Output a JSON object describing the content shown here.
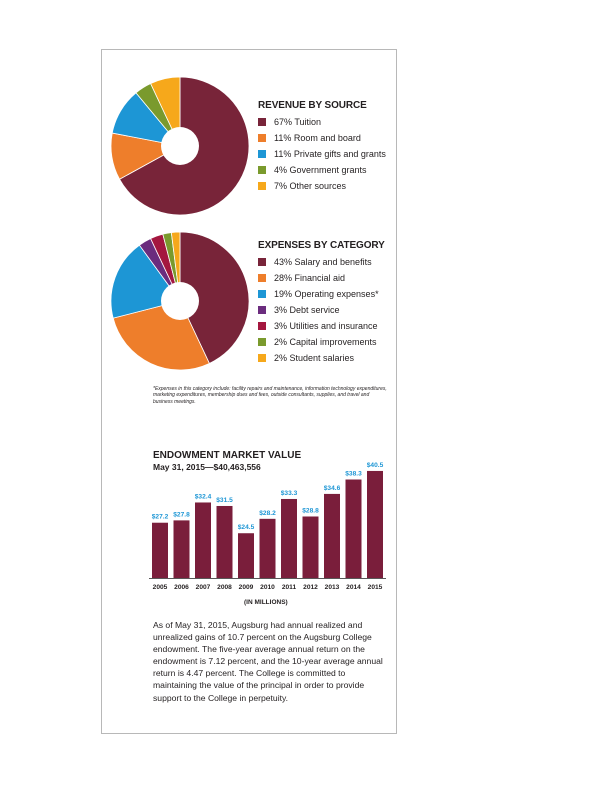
{
  "colors": {
    "maroon": "#782439",
    "orange": "#ee7e2b",
    "blue": "#1d96d5",
    "green": "#7a9a2d",
    "yellow": "#f6a81b",
    "purple": "#6b2c7e",
    "crimson": "#a4173f",
    "bar": "#7a1e3b",
    "bar_label": "#1d96d5"
  },
  "revenue": {
    "title": "REVENUE BY SOURCE",
    "items": [
      {
        "label": "67% Tuition",
        "value": 67,
        "color": "#782439"
      },
      {
        "label": "11% Room and board",
        "value": 11,
        "color": "#ee7e2b"
      },
      {
        "label": "11% Private gifts and grants",
        "value": 11,
        "color": "#1d96d5"
      },
      {
        "label": "4% Government grants",
        "value": 4,
        "color": "#7a9a2d"
      },
      {
        "label": "7% Other sources",
        "value": 7,
        "color": "#f6a81b"
      }
    ]
  },
  "expenses": {
    "title": "EXPENSES BY CATEGORY",
    "items": [
      {
        "label": "43% Salary and benefits",
        "value": 43,
        "color": "#782439"
      },
      {
        "label": "28% Financial aid",
        "value": 28,
        "color": "#ee7e2b"
      },
      {
        "label": "19% Operating expenses*",
        "value": 19,
        "color": "#1d96d5"
      },
      {
        "label": "3% Debt service",
        "value": 3,
        "color": "#6b2c7e"
      },
      {
        "label": "3% Utilities and insurance",
        "value": 3,
        "color": "#a4173f"
      },
      {
        "label": "2% Capital improvements",
        "value": 2,
        "color": "#7a9a2d"
      },
      {
        "label": "2% Student salaries",
        "value": 2,
        "color": "#f6a81b"
      }
    ],
    "footnote": "*Expenses in this category include: facility repairs and maintenance, information technology expenditures, marketing expenditures, membership dues and fees, outside consultants, supplies, and travel and business meetings."
  },
  "endowment": {
    "title": "ENDOWMENT MARKET VALUE",
    "subtitle": "May 31, 2015—$40,463,556",
    "unit_label": "(IN MILLIONS)"
  },
  "paragraph": "As of May 31, 2015, Augsburg had annual realized and unrealized gains of 10.7 percent on the Augsburg College endowment. The five-year average annual return on the endowment is 7.12 percent, and the 10-year average annual return is 4.47 percent. The College is committed to maintaining the value of the principal in order to provide support to the College in perpetuity.",
  "chart_data": [
    {
      "type": "pie",
      "title": "REVENUE BY SOURCE",
      "categories": [
        "Tuition",
        "Room and board",
        "Private gifts and grants",
        "Government grants",
        "Other sources"
      ],
      "values": [
        67,
        11,
        11,
        4,
        7
      ],
      "legend": "right"
    },
    {
      "type": "pie",
      "title": "EXPENSES BY CATEGORY",
      "categories": [
        "Salary and benefits",
        "Financial aid",
        "Operating expenses*",
        "Debt service",
        "Utilities and insurance",
        "Capital improvements",
        "Student salaries"
      ],
      "values": [
        43,
        28,
        19,
        3,
        3,
        2,
        2
      ],
      "legend": "right"
    },
    {
      "type": "bar",
      "title": "ENDOWMENT MARKET VALUE",
      "subtitle": "May 31, 2015—$40,463,556",
      "xlabel": "(IN MILLIONS)",
      "ylabel": "",
      "categories": [
        "2005",
        "2006",
        "2007",
        "2008",
        "2009",
        "2010",
        "2011",
        "2012",
        "2013",
        "2014",
        "2015"
      ],
      "values": [
        27.2,
        27.8,
        32.4,
        31.5,
        24.5,
        28.2,
        33.3,
        28.8,
        34.6,
        38.3,
        40.5
      ],
      "data_labels": [
        "$27.2",
        "$27.8",
        "$32.4",
        "$31.5",
        "$24.5",
        "$28.2",
        "$33.3",
        "$28.8",
        "$34.6",
        "$38.3",
        "$40.5"
      ],
      "ylim": [
        13,
        41
      ],
      "grid": false
    }
  ]
}
